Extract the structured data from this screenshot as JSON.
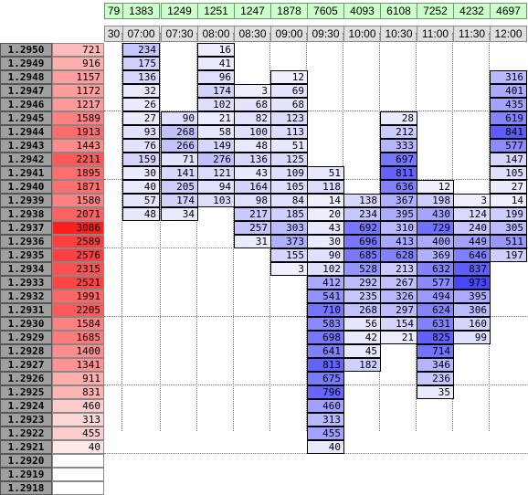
{
  "session_totals": [
    "79",
    "1383",
    "1249",
    "1251",
    "1247",
    "1878",
    "7605",
    "4093",
    "6108",
    "7252",
    "4232",
    "4697"
  ],
  "time_labels": [
    "30",
    "07:00",
    "07:30",
    "08:00",
    "08:30",
    "09:00",
    "09:30",
    "10:00",
    "10:30",
    "11:00",
    "11:30",
    "12:00"
  ],
  "prices": [
    "1.2950",
    "1.2949",
    "1.2948",
    "1.2947",
    "1.2946",
    "1.2945",
    "1.2944",
    "1.2943",
    "1.2942",
    "1.2941",
    "1.2940",
    "1.2939",
    "1.2938",
    "1.2937",
    "1.2936",
    "1.2935",
    "1.2934",
    "1.2933",
    "1.2932",
    "1.2931",
    "1.2930",
    "1.2929",
    "1.2928",
    "1.2927",
    "1.2926",
    "1.2925",
    "1.2924",
    "1.2923",
    "1.2922",
    "1.2921",
    "1.2920",
    "1.2919",
    "1.2918"
  ],
  "volume_profile": [
    "721",
    "916",
    "1157",
    "1172",
    "1217",
    "1589",
    "1913",
    "1443",
    "2211",
    "1895",
    "1871",
    "1580",
    "2071",
    "3086",
    "2589",
    "2576",
    "2315",
    "2521",
    "1991",
    "2205",
    "1584",
    "1685",
    "1400",
    "1341",
    "911",
    "831",
    "460",
    "313",
    "455",
    "40",
    "",
    "",
    ""
  ],
  "cells": [
    [
      "",
      "234",
      "",
      "16",
      "",
      "",
      "",
      "",
      "",
      "",
      "",
      ""
    ],
    [
      "",
      "175",
      "",
      "41",
      "",
      "",
      "",
      "",
      "",
      "",
      "",
      ""
    ],
    [
      "",
      "136",
      "",
      "96",
      "",
      "12",
      "",
      "",
      "",
      "",
      "",
      "316"
    ],
    [
      "",
      "32",
      "",
      "174",
      "3",
      "69",
      "",
      "",
      "",
      "",
      "",
      "401"
    ],
    [
      "",
      "26",
      "",
      "102",
      "68",
      "68",
      "",
      "",
      "",
      "",
      "",
      "435"
    ],
    [
      "",
      "27",
      "90",
      "21",
      "82",
      "123",
      "",
      "",
      "28",
      "",
      "",
      "619"
    ],
    [
      "",
      "93",
      "268",
      "58",
      "100",
      "113",
      "",
      "",
      "212",
      "",
      "",
      "841"
    ],
    [
      "",
      "76",
      "266",
      "149",
      "48",
      "51",
      "",
      "",
      "333",
      "",
      "",
      "577"
    ],
    [
      "",
      "159",
      "71",
      "276",
      "136",
      "125",
      "",
      "",
      "697",
      "",
      "",
      "147"
    ],
    [
      "",
      "30",
      "141",
      "121",
      "43",
      "109",
      "51",
      "",
      "811",
      "",
      "",
      "105"
    ],
    [
      "",
      "40",
      "205",
      "94",
      "164",
      "105",
      "118",
      "",
      "636",
      "12",
      "",
      "27"
    ],
    [
      "",
      "57",
      "174",
      "103",
      "98",
      "84",
      "14",
      "138",
      "367",
      "198",
      "3",
      "14"
    ],
    [
      "",
      "48",
      "34",
      "",
      "217",
      "185",
      "20",
      "234",
      "395",
      "430",
      "124",
      "199"
    ],
    [
      "",
      "",
      "",
      "",
      "257",
      "303",
      "43",
      "692",
      "310",
      "729",
      "240",
      "305"
    ],
    [
      "",
      "",
      "",
      "",
      "31",
      "373",
      "30",
      "696",
      "413",
      "400",
      "449",
      "511"
    ],
    [
      "",
      "",
      "",
      "",
      "",
      "155",
      "90",
      "685",
      "628",
      "369",
      "646",
      "197"
    ],
    [
      "",
      "",
      "",
      "",
      "",
      "3",
      "102",
      "528",
      "213",
      "632",
      "837",
      ""
    ],
    [
      "",
      "",
      "",
      "",
      "",
      "",
      "412",
      "292",
      "267",
      "577",
      "973",
      ""
    ],
    [
      "",
      "",
      "",
      "",
      "",
      "",
      "541",
      "235",
      "326",
      "494",
      "395",
      ""
    ],
    [
      "",
      "",
      "",
      "",
      "",
      "",
      "710",
      "268",
      "297",
      "624",
      "306",
      ""
    ],
    [
      "",
      "",
      "",
      "",
      "",
      "",
      "583",
      "56",
      "154",
      "631",
      "160",
      ""
    ],
    [
      "",
      "",
      "",
      "",
      "",
      "",
      "698",
      "42",
      "21",
      "825",
      "99",
      ""
    ],
    [
      "",
      "",
      "",
      "",
      "",
      "",
      "641",
      "45",
      "",
      "714",
      "",
      ""
    ],
    [
      "",
      "",
      "",
      "",
      "",
      "",
      "813",
      "182",
      "",
      "346",
      "",
      ""
    ],
    [
      "",
      "",
      "",
      "",
      "",
      "",
      "675",
      "",
      "",
      "236",
      "",
      ""
    ],
    [
      "",
      "",
      "",
      "",
      "",
      "",
      "796",
      "",
      "",
      "35",
      "",
      ""
    ],
    [
      "",
      "",
      "",
      "",
      "",
      "",
      "460",
      "",
      "",
      "",
      "",
      ""
    ],
    [
      "",
      "",
      "",
      "",
      "",
      "",
      "313",
      "",
      "",
      "",
      "",
      ""
    ],
    [
      "",
      "",
      "",
      "",
      "",
      "",
      "455",
      "",
      "",
      "",
      "",
      ""
    ],
    [
      "",
      "",
      "",
      "",
      "",
      "",
      "40",
      "",
      "",
      "",
      "",
      ""
    ],
    [
      "",
      "",
      "",
      "",
      "",
      "",
      "",
      "",
      "",
      "",
      "",
      ""
    ],
    [
      "",
      "",
      "",
      "",
      "",
      "",
      "",
      "",
      "",
      "",
      "",
      ""
    ],
    [
      "",
      "",
      "",
      "",
      "",
      "",
      "",
      "",
      "",
      "",
      "",
      ""
    ]
  ],
  "colors": {
    "total_bg": "#ccffcc",
    "time_bg": "#e0e0e0",
    "price_bg": "#a0a0a0",
    "volume_max": "#ff2020",
    "cell_max": "#5050ee"
  }
}
